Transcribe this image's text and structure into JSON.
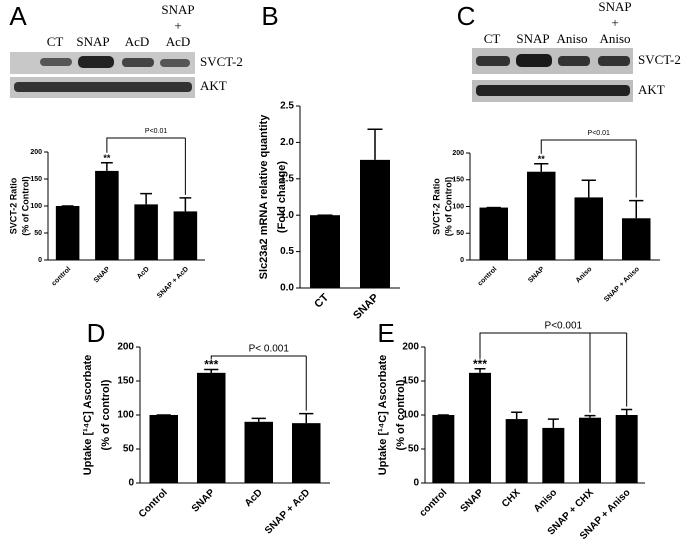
{
  "chart_data": [
    {
      "panel": "A",
      "type": "bar",
      "categories": [
        "control",
        "SNAP",
        "AcD",
        "SNAP + AcD"
      ],
      "values": [
        100,
        165,
        103,
        90
      ],
      "errors": [
        0,
        15,
        20,
        25
      ],
      "color": "#000000",
      "ylim": [
        0,
        200
      ],
      "yticks": [
        0,
        50,
        100,
        150,
        200
      ],
      "ylabel": [
        "SVCT-2 Ratio",
        "(% of Control)"
      ],
      "annotations": [
        "**",
        "P<0.01"
      ],
      "blot": {
        "lanes": [
          [
            "CT"
          ],
          [
            "SNAP"
          ],
          [
            "AcD"
          ],
          [
            "SNAP",
            "+",
            "AcD"
          ]
        ],
        "bands": [
          "SVCT-2",
          "AKT"
        ]
      }
    },
    {
      "panel": "B",
      "type": "bar",
      "categories": [
        "CT",
        "SNAP"
      ],
      "values": [
        1.0,
        1.76
      ],
      "errors": [
        0,
        0.42
      ],
      "color": "#000000",
      "ylim": [
        0,
        2.5
      ],
      "yticks": [
        {
          "value": 0,
          "label": "0.0"
        },
        0.5,
        {
          "value": 1,
          "label": "1.0"
        },
        1.5,
        {
          "value": 2,
          "label": "2.0"
        },
        2.5
      ],
      "ylabel": [
        "Slc23a2 mRNA relative quantity",
        "(Fold change)"
      ]
    },
    {
      "panel": "C",
      "type": "bar",
      "categories": [
        "control",
        "SNAP",
        "Aniso",
        "SNAP + Aniso"
      ],
      "values": [
        98,
        165,
        117,
        78
      ],
      "errors": [
        0,
        15,
        32,
        33
      ],
      "color": "#000000",
      "ylim": [
        0,
        200
      ],
      "yticks": [
        0,
        50,
        100,
        150,
        200
      ],
      "ylabel": [
        "SVCT-2 Ratio",
        "(% of Control)"
      ],
      "annotations": [
        "**",
        "P<0.01"
      ],
      "blot": {
        "lanes": [
          [
            "CT"
          ],
          [
            "SNAP"
          ],
          [
            "Aniso"
          ],
          [
            "SNAP",
            "+",
            "Aniso"
          ]
        ],
        "bands": [
          "SVCT-2",
          "AKT"
        ]
      }
    },
    {
      "panel": "D",
      "type": "bar",
      "categories": [
        "Control",
        "SNAP",
        "AcD",
        "SNAP + AcD"
      ],
      "values": [
        100,
        162,
        90,
        88
      ],
      "errors": [
        0,
        5,
        5,
        14
      ],
      "color": "#000000",
      "ylim": [
        0,
        200
      ],
      "yticks": [
        0,
        50,
        100,
        150,
        200
      ],
      "ylabel": [
        "Uptake [¹⁴C] Ascorbate",
        "(% of control)"
      ],
      "annotations": [
        "***",
        "P< 0.001"
      ]
    },
    {
      "panel": "E",
      "type": "bar",
      "categories": [
        "control",
        "SNAP",
        "CHX",
        "Aniso",
        "SNAP + CHX",
        "SNAP + Aniso"
      ],
      "values": [
        100,
        162,
        94,
        81,
        96,
        100
      ],
      "errors": [
        0,
        6,
        10,
        13,
        3,
        8
      ],
      "color": "#000000",
      "ylim": [
        0,
        200
      ],
      "yticks": [
        0,
        50,
        100,
        150,
        200
      ],
      "ylabel": [
        "Uptake [¹⁴C] Ascorbate",
        "(% of control)"
      ],
      "annotations": [
        "***",
        "P<0.001"
      ]
    }
  ]
}
